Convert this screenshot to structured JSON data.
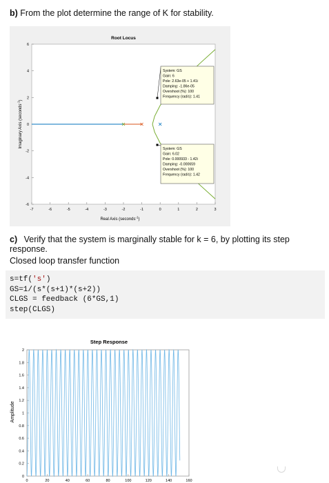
{
  "question_b": {
    "label": "b)",
    "text": "From the plot determine the range of K for stability."
  },
  "question_c": {
    "label": "c)",
    "text": "Verify that the system is marginally stable for k = 6, by plotting its step response."
  },
  "closed_loop_label": "Closed loop transfer function",
  "code": {
    "line1_pre": "s=tf(",
    "line1_str": "'s'",
    "line1_post": ")",
    "line2": "GS=1/(s*(s+1)*(s+2))",
    "line3": "CLGS = feedback (6*GS,1)",
    "line4": "step(CLGS)"
  },
  "root_locus": {
    "title": "Root Locus",
    "xlabel": "Real Axis (seconds",
    "xlabel_sup": "-1",
    "ylabel": "Imaginary Axis (seconds",
    "ylabel_sup": "-1",
    "x_ticks": [
      "-7",
      "-6",
      "-5",
      "-4",
      "-3",
      "-2",
      "-1",
      "0",
      "1",
      "2",
      "3"
    ],
    "y_ticks": [
      "6",
      "4",
      "2",
      "0",
      "-2",
      "-4",
      "-6"
    ],
    "datatip_upper": {
      "system": "System: GS",
      "gain": "Gain: 6",
      "pole": "Pole: 2.63e-05 + 1.41i",
      "damping": "Damping: -1.86e-05",
      "overshoot": "Overshoot (%): 100",
      "frequency": "Frequency (rad/s): 1.41"
    },
    "datatip_lower": {
      "system": "System: GS",
      "gain": "Gain: 6.02",
      "pole": "Pole: 0.000933 - 1.42i",
      "damping": "Damping: -0.000659",
      "overshoot": "Overshoot (%): 100",
      "frequency": "Frequency (rad/s): 1.42"
    }
  },
  "step_response": {
    "title": "Step Response",
    "ylabel": "Amplitude",
    "x_ticks": [
      "0",
      "20",
      "40",
      "60",
      "80",
      "100",
      "120",
      "140",
      "160"
    ],
    "y_ticks": [
      "0",
      "0.2",
      "0.4",
      "0.6",
      "0.8",
      "1",
      "1.2",
      "1.4",
      "1.6",
      "1.8",
      "2"
    ]
  },
  "chart_data": [
    {
      "type": "line",
      "title": "Root Locus",
      "xlabel": "Real Axis (seconds-1)",
      "ylabel": "Imaginary Axis (seconds-1)",
      "xlim": [
        -7,
        3
      ],
      "ylim": [
        -6,
        6
      ],
      "grid": false,
      "series": [
        {
          "color": "#0072bd",
          "x": [
            -7,
            -2
          ],
          "y": [
            0,
            0
          ]
        },
        {
          "color": "#d95319",
          "x": [
            -1,
            -2
          ],
          "y": [
            0,
            0
          ]
        },
        {
          "color": "#77ac30",
          "x": [
            -0.42,
            -0.3,
            0,
            0.5,
            1.2,
            2.2,
            3
          ],
          "y": [
            0,
            0.6,
            1.41,
            2.3,
            3.3,
            4.6,
            5.6
          ]
        },
        {
          "color": "#77ac30",
          "x": [
            -0.42,
            -0.3,
            0,
            0.5,
            1.2,
            2.2,
            3
          ],
          "y": [
            0,
            -0.6,
            -1.42,
            -2.3,
            -3.3,
            -4.6,
            -5.6
          ]
        }
      ]
    },
    {
      "type": "line",
      "title": "Step Response",
      "xlabel": "",
      "ylabel": "Amplitude",
      "xlim": [
        0,
        160
      ],
      "ylim": [
        0,
        2
      ],
      "grid": false,
      "series": [
        {
          "color": "#6fb7e6",
          "oscillation_center": 1,
          "amplitude": 1,
          "frequency_rad_s": 1.41,
          "x_end": 151
        }
      ]
    }
  ]
}
